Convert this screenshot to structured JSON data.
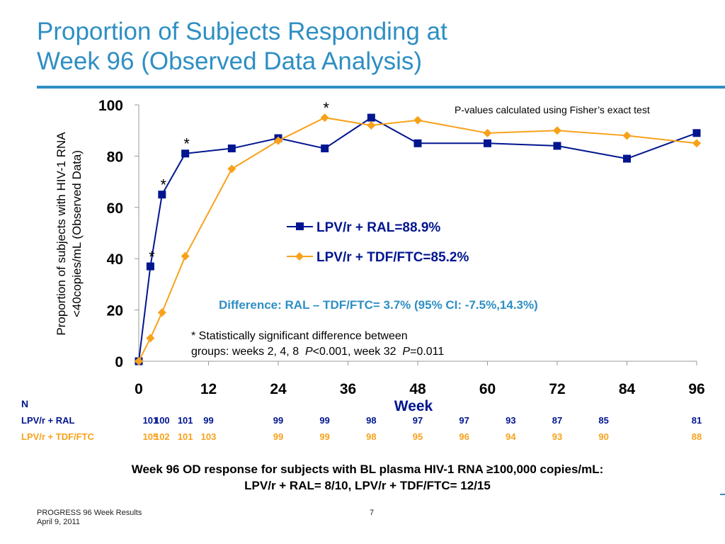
{
  "slide": {
    "title": "Proportion of Subjects Responding at\nWeek 96 (Observed Data Analysis)",
    "colors": {
      "accent": "#2e8fc3",
      "ral": "#00158f",
      "tdf": "#f7a21b",
      "difference_text": "#2e8fc3"
    }
  },
  "chart_data": {
    "type": "line",
    "xlabel": "Week",
    "ylabel": "Proportion of subjects with HIV-1 RNA\n<40copies/mL (Observed Data)",
    "xlim": [
      0,
      96
    ],
    "ylim": [
      0,
      100
    ],
    "xticks": [
      0,
      12,
      24,
      36,
      48,
      60,
      72,
      84,
      96
    ],
    "yticks": [
      0,
      20,
      40,
      60,
      80,
      100
    ],
    "series": [
      {
        "name": "LPV/r + RAL=88.9%",
        "color": "#00158f",
        "marker": "square",
        "x": [
          0,
          2,
          4,
          8,
          16,
          24,
          32,
          40,
          48,
          60,
          72,
          84,
          96
        ],
        "y": [
          0,
          37,
          65,
          81,
          83,
          87,
          83,
          95,
          85,
          85,
          84,
          79,
          89
        ]
      },
      {
        "name": "LPV/r + TDF/FTC=85.2%",
        "color": "#f7a21b",
        "marker": "diamond",
        "x": [
          0,
          2,
          4,
          8,
          16,
          24,
          32,
          40,
          48,
          60,
          72,
          84,
          96
        ],
        "y": [
          0,
          9,
          19,
          41,
          75,
          86,
          95,
          92,
          94,
          89,
          90,
          88,
          85
        ]
      }
    ],
    "significance_markers": [
      {
        "x": 2,
        "y": 42,
        "label": "*"
      },
      {
        "x": 4,
        "y": 70,
        "label": "*"
      },
      {
        "x": 8,
        "y": 86,
        "label": "*"
      },
      {
        "x": 32,
        "y": 100,
        "label": "*"
      }
    ],
    "annotations": {
      "pvalue_note": "P-values calculated using Fisher’s exact test",
      "difference": "Difference: RAL – TDF/FTC= 3.7% (95% CI: -7.5%,14.3%)",
      "significance_line1": "* Statistically significant difference between",
      "significance_line2_a": "groups: weeks 2, 4, 8  ",
      "significance_line2_p1": "P",
      "significance_line2_b": "<0.001, week 32  ",
      "significance_line2_p2": "P",
      "significance_line2_c": "=0.011"
    },
    "legend_position": "center-right"
  },
  "n_table": {
    "header": "N",
    "rows": [
      {
        "label": "LPV/r + RAL",
        "color": "#00158f",
        "cells": [
          {
            "x": 2,
            "v": "101"
          },
          {
            "x": 4,
            "v": "100"
          },
          {
            "x": 8,
            "v": "101"
          },
          {
            "x": 12,
            "v": "99"
          },
          {
            "x": 24,
            "v": "99"
          },
          {
            "x": 32,
            "v": "99"
          },
          {
            "x": 40,
            "v": "98"
          },
          {
            "x": 48,
            "v": "97"
          },
          {
            "x": 56,
            "v": "97"
          },
          {
            "x": 64,
            "v": "93"
          },
          {
            "x": 72,
            "v": "87"
          },
          {
            "x": 80,
            "v": "85"
          },
          {
            "x": 96,
            "v": "81"
          }
        ]
      },
      {
        "label": "LPV/r + TDF/FTC",
        "color": "#f7a21b",
        "cells": [
          {
            "x": 2,
            "v": "105"
          },
          {
            "x": 4,
            "v": "102"
          },
          {
            "x": 8,
            "v": "101"
          },
          {
            "x": 12,
            "v": "103"
          },
          {
            "x": 24,
            "v": "99"
          },
          {
            "x": 32,
            "v": "99"
          },
          {
            "x": 40,
            "v": "98"
          },
          {
            "x": 48,
            "v": "95"
          },
          {
            "x": 56,
            "v": "96"
          },
          {
            "x": 64,
            "v": "94"
          },
          {
            "x": 72,
            "v": "93"
          },
          {
            "x": 80,
            "v": "90"
          },
          {
            "x": 96,
            "v": "88"
          }
        ]
      }
    ]
  },
  "summary": {
    "line1": "Week 96 OD response for subjects with BL plasma HIV-1 RNA  ≥100,000 copies/mL:",
    "line2": "LPV/r + RAL= 8/10, LPV/r + TDF/FTC= 12/15"
  },
  "footer": {
    "title": "PROGRESS 96 Week Results",
    "date": "April 9, 2011",
    "page": "7"
  }
}
